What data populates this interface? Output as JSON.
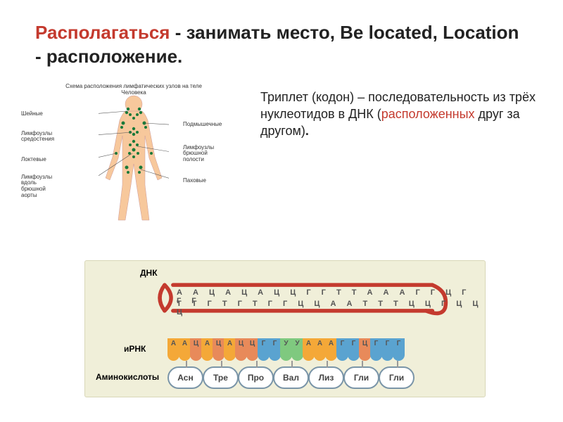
{
  "title": {
    "part1": "Располагаться",
    "sep1": " - ",
    "part2": "занимать место, ",
    "part3": "Be located, Location",
    "sep2": " - ",
    "part4": "расположение."
  },
  "diagram_title": "Схема расположения лимфатических узлов на теле Человека",
  "lymph_labels": {
    "sheynye": "Шейные",
    "sredosteniya": "Лимфоузлы\nсредостения",
    "loktevye": "Локтевые",
    "aorty": "Лимфоузлы\nвдоль\nбрюшной\nаорты",
    "podmysh": "Подмышечные",
    "brush": "Лимфоузлы\nбрюшной\nполости",
    "pahovye": "Паховые"
  },
  "body_colors": {
    "skin": "#f7c89c",
    "node": "#1a7a3a"
  },
  "definition": {
    "t1": "Триплет (кодон) – последовательность из трёх нуклеотидов в ДНК (",
    "t2": "расположенных",
    "t3": " друг за другом)",
    "dot": "."
  },
  "dna": {
    "label_dna": "ДНК",
    "label_mrna": "иРНК",
    "label_aa": "Аминокислоты",
    "helix_color": "#c43a2e",
    "bg_color": "#f0efd9",
    "top_strand": "А А Ц А Ц А Ц Ц Г Г Т Т А А А Г Г Ц Г Г Г",
    "bot_strand": "Т Т Г Т Г Т Г Г Ц Ц А А Т Т Т Ц Ц Г Ц Ц Ц",
    "mrna_codons": [
      [
        "А",
        "А",
        "Ц"
      ],
      [
        "А",
        "Ц",
        "А"
      ],
      [
        "Ц",
        "Ц",
        "Г"
      ],
      [
        "Г",
        "У",
        "У"
      ],
      [
        "А",
        "А",
        "А"
      ],
      [
        "Г",
        "Г",
        "Ц"
      ],
      [
        "Г",
        "Г",
        "Г"
      ]
    ],
    "nuc_colors": {
      "А": "#f4a838",
      "Ц": "#e88a5a",
      "Г": "#5aa3d0",
      "У": "#7fc97f",
      "Т": "#7fc97f"
    },
    "amino_acids": [
      "Асн",
      "Тре",
      "Про",
      "Вал",
      "Лиз",
      "Гли",
      "Гли"
    ],
    "aa_border": "#7a95a8"
  }
}
